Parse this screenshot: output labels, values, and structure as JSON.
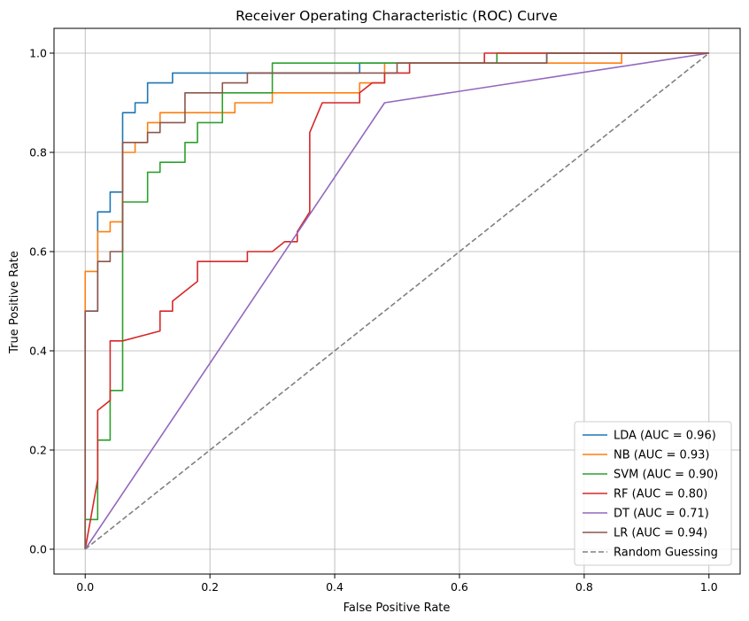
{
  "chart_data": {
    "type": "line",
    "title": "Receiver Operating Characteristic (ROC) Curve",
    "xlabel": "False Positive Rate",
    "ylabel": "True Positive Rate",
    "xlim": [
      -0.05,
      1.05
    ],
    "ylim": [
      -0.05,
      1.05
    ],
    "x_ticks": [
      0.0,
      0.2,
      0.4,
      0.6,
      0.8,
      1.0
    ],
    "x_tick_labels": [
      "0.0",
      "0.2",
      "0.4",
      "0.6",
      "0.8",
      "1.0"
    ],
    "y_ticks": [
      0.0,
      0.2,
      0.4,
      0.6,
      0.8,
      1.0
    ],
    "y_tick_labels": [
      "0.0",
      "0.2",
      "0.4",
      "0.6",
      "0.8",
      "1.0"
    ],
    "grid": true,
    "legend_position": "lower-right",
    "series": [
      {
        "name": "LDA (AUC = 0.96)",
        "color": "#1f77b4",
        "style": "solid",
        "points": [
          [
            0,
            0
          ],
          [
            0,
            0.48
          ],
          [
            0.02,
            0.48
          ],
          [
            0.02,
            0.68
          ],
          [
            0.04,
            0.68
          ],
          [
            0.04,
            0.72
          ],
          [
            0.06,
            0.72
          ],
          [
            0.06,
            0.88
          ],
          [
            0.08,
            0.88
          ],
          [
            0.08,
            0.9
          ],
          [
            0.1,
            0.9
          ],
          [
            0.1,
            0.94
          ],
          [
            0.14,
            0.94
          ],
          [
            0.14,
            0.96
          ],
          [
            0.44,
            0.96
          ],
          [
            0.44,
            0.98
          ],
          [
            0.74,
            0.98
          ],
          [
            0.74,
            1.0
          ],
          [
            1.0,
            1.0
          ]
        ]
      },
      {
        "name": "NB (AUC = 0.93)",
        "color": "#ff7f0e",
        "style": "solid",
        "points": [
          [
            0,
            0
          ],
          [
            0,
            0.56
          ],
          [
            0.02,
            0.56
          ],
          [
            0.02,
            0.64
          ],
          [
            0.04,
            0.64
          ],
          [
            0.04,
            0.66
          ],
          [
            0.06,
            0.66
          ],
          [
            0.06,
            0.8
          ],
          [
            0.08,
            0.8
          ],
          [
            0.08,
            0.82
          ],
          [
            0.1,
            0.82
          ],
          [
            0.1,
            0.86
          ],
          [
            0.12,
            0.86
          ],
          [
            0.12,
            0.88
          ],
          [
            0.24,
            0.88
          ],
          [
            0.24,
            0.9
          ],
          [
            0.3,
            0.9
          ],
          [
            0.3,
            0.92
          ],
          [
            0.44,
            0.92
          ],
          [
            0.44,
            0.94
          ],
          [
            0.48,
            0.94
          ],
          [
            0.48,
            0.98
          ],
          [
            0.86,
            0.98
          ],
          [
            0.86,
            1.0
          ],
          [
            1.0,
            1.0
          ]
        ]
      },
      {
        "name": "SVM (AUC = 0.90)",
        "color": "#2ca02c",
        "style": "solid",
        "points": [
          [
            0,
            0
          ],
          [
            0,
            0.06
          ],
          [
            0.02,
            0.06
          ],
          [
            0.02,
            0.22
          ],
          [
            0.04,
            0.22
          ],
          [
            0.04,
            0.32
          ],
          [
            0.06,
            0.32
          ],
          [
            0.06,
            0.7
          ],
          [
            0.1,
            0.7
          ],
          [
            0.1,
            0.76
          ],
          [
            0.12,
            0.76
          ],
          [
            0.12,
            0.78
          ],
          [
            0.16,
            0.78
          ],
          [
            0.16,
            0.82
          ],
          [
            0.18,
            0.82
          ],
          [
            0.18,
            0.86
          ],
          [
            0.22,
            0.86
          ],
          [
            0.22,
            0.92
          ],
          [
            0.3,
            0.92
          ],
          [
            0.3,
            0.98
          ],
          [
            0.66,
            0.98
          ],
          [
            0.66,
            1.0
          ],
          [
            1.0,
            1.0
          ]
        ]
      },
      {
        "name": "RF (AUC = 0.80)",
        "color": "#d62728",
        "style": "solid",
        "points": [
          [
            0,
            0
          ],
          [
            0.02,
            0.14
          ],
          [
            0.02,
            0.28
          ],
          [
            0.04,
            0.3
          ],
          [
            0.04,
            0.42
          ],
          [
            0.06,
            0.42
          ],
          [
            0.12,
            0.44
          ],
          [
            0.12,
            0.48
          ],
          [
            0.14,
            0.48
          ],
          [
            0.14,
            0.5
          ],
          [
            0.16,
            0.52
          ],
          [
            0.18,
            0.54
          ],
          [
            0.18,
            0.58
          ],
          [
            0.26,
            0.58
          ],
          [
            0.26,
            0.6
          ],
          [
            0.3,
            0.6
          ],
          [
            0.32,
            0.62
          ],
          [
            0.34,
            0.62
          ],
          [
            0.34,
            0.64
          ],
          [
            0.36,
            0.68
          ],
          [
            0.36,
            0.84
          ],
          [
            0.38,
            0.9
          ],
          [
            0.44,
            0.9
          ],
          [
            0.44,
            0.92
          ],
          [
            0.46,
            0.94
          ],
          [
            0.48,
            0.94
          ],
          [
            0.48,
            0.96
          ],
          [
            0.52,
            0.96
          ],
          [
            0.52,
            0.98
          ],
          [
            0.64,
            0.98
          ],
          [
            0.64,
            1.0
          ],
          [
            1.0,
            1.0
          ]
        ]
      },
      {
        "name": "DT (AUC = 0.71)",
        "color": "#9467bd",
        "style": "solid",
        "points": [
          [
            0,
            0
          ],
          [
            0.48,
            0.9
          ],
          [
            1.0,
            1.0
          ]
        ]
      },
      {
        "name": "LR (AUC = 0.94)",
        "color": "#8c564b",
        "style": "solid",
        "points": [
          [
            0,
            0
          ],
          [
            0,
            0.48
          ],
          [
            0.02,
            0.48
          ],
          [
            0.02,
            0.58
          ],
          [
            0.04,
            0.58
          ],
          [
            0.04,
            0.6
          ],
          [
            0.06,
            0.6
          ],
          [
            0.06,
            0.82
          ],
          [
            0.1,
            0.82
          ],
          [
            0.1,
            0.84
          ],
          [
            0.12,
            0.84
          ],
          [
            0.12,
            0.86
          ],
          [
            0.16,
            0.86
          ],
          [
            0.16,
            0.92
          ],
          [
            0.22,
            0.92
          ],
          [
            0.22,
            0.94
          ],
          [
            0.26,
            0.94
          ],
          [
            0.26,
            0.96
          ],
          [
            0.5,
            0.96
          ],
          [
            0.5,
            0.98
          ],
          [
            0.74,
            0.98
          ],
          [
            0.74,
            1.0
          ],
          [
            1.0,
            1.0
          ]
        ]
      },
      {
        "name": "Random Guessing",
        "color": "#808080",
        "style": "dashed",
        "points": [
          [
            0,
            0
          ],
          [
            1.0,
            1.0
          ]
        ]
      }
    ]
  }
}
